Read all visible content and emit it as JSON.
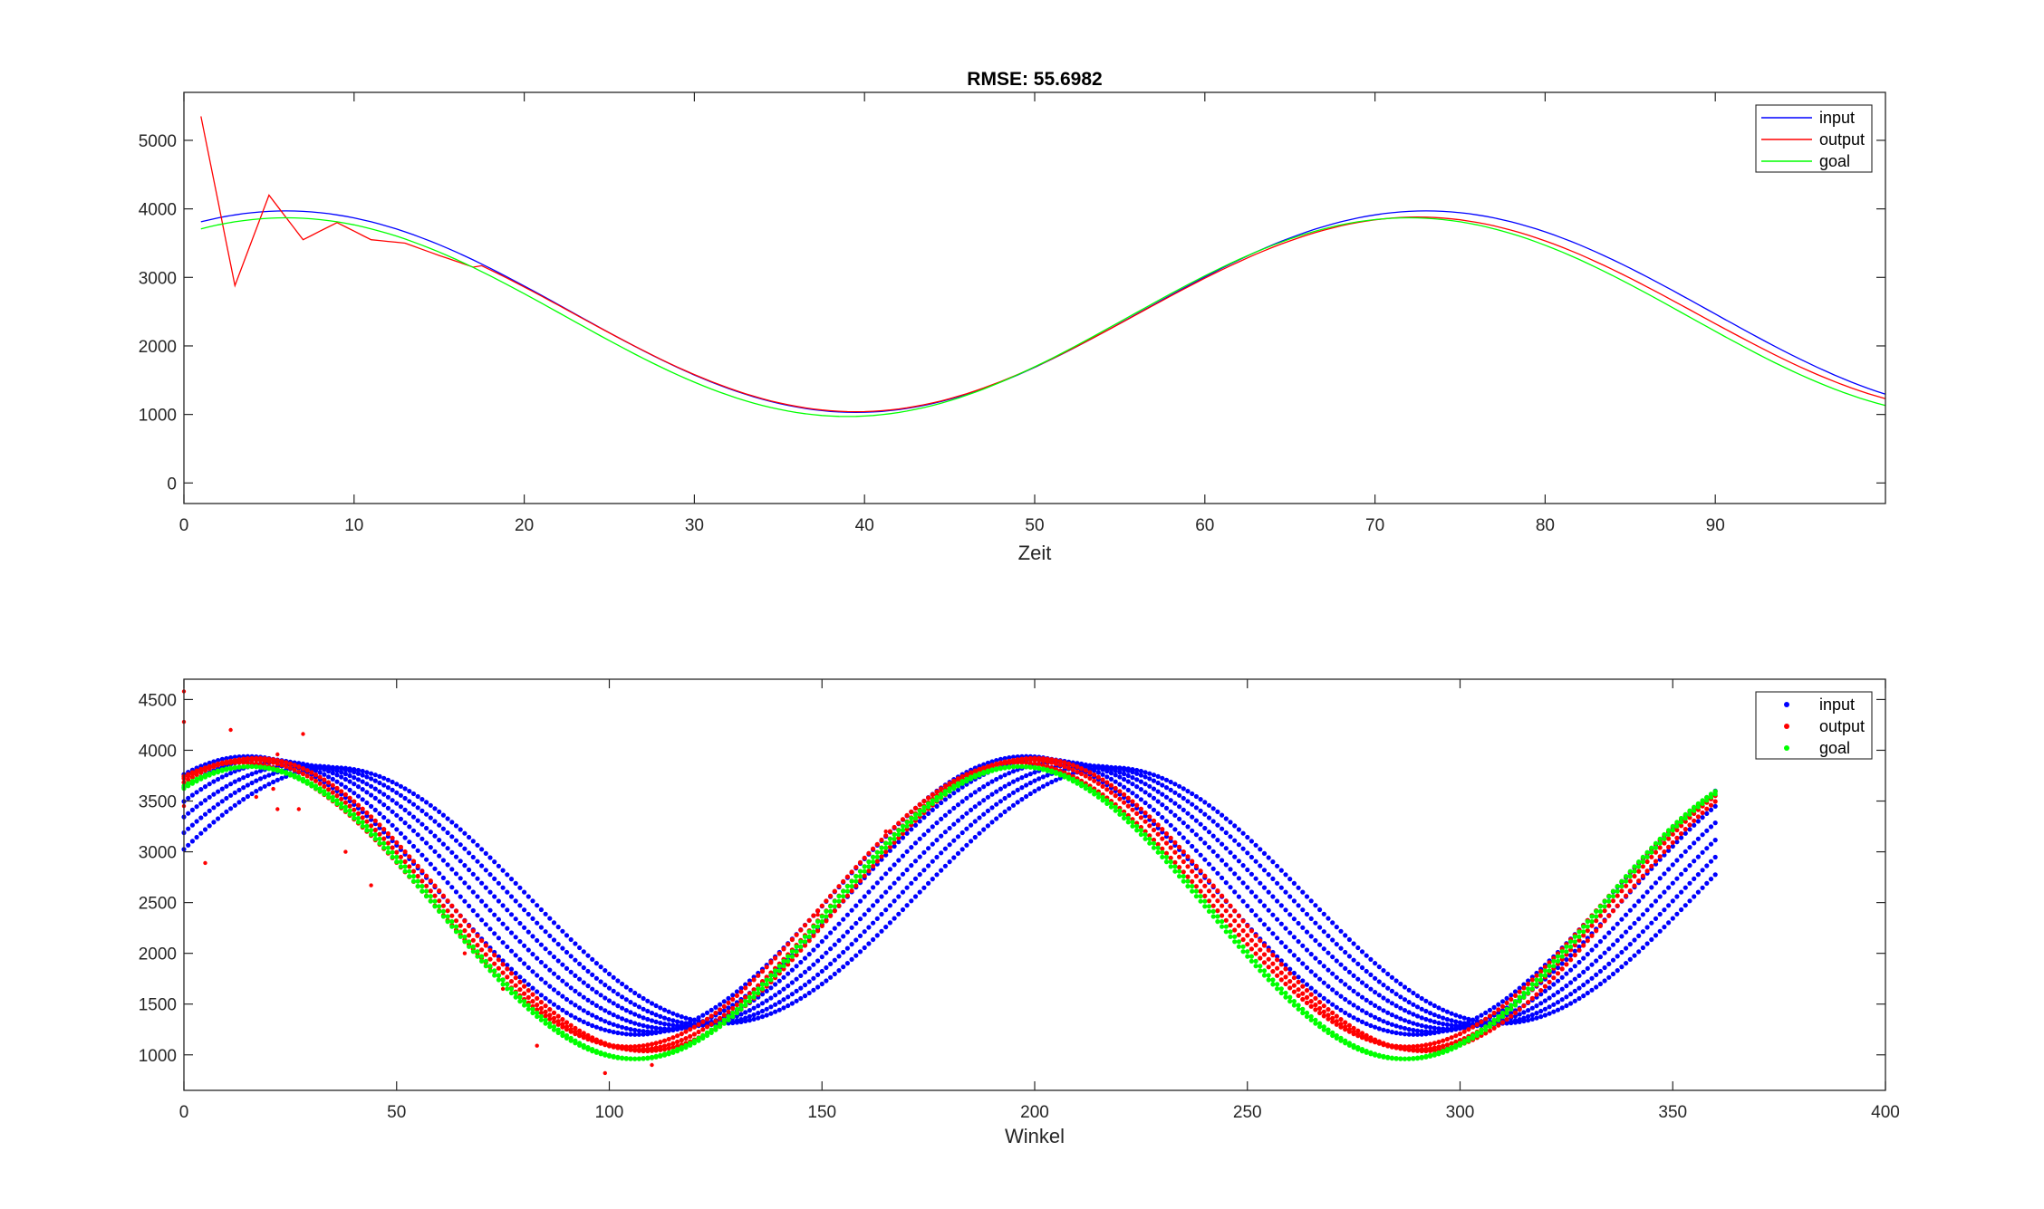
{
  "chart_data": [
    {
      "type": "line",
      "title": "RMSE: 55.6982",
      "xlabel": "Zeit",
      "ylabel": "",
      "xlim": [
        0,
        100
      ],
      "ylim": [
        -300,
        5700
      ],
      "xticks": [
        0,
        10,
        20,
        30,
        40,
        50,
        60,
        70,
        80,
        90
      ],
      "yticks": [
        0,
        1000,
        2000,
        3000,
        4000,
        5000
      ],
      "legend_position": "top-right",
      "grid": false,
      "x_range": [
        1,
        100
      ],
      "series": [
        {
          "name": "input",
          "color": "#0000ff",
          "model": {
            "amplitude": 1470,
            "offset": 2500,
            "center": 73,
            "period": 67
          }
        },
        {
          "name": "output",
          "color": "#ff0000",
          "model": {
            "amplitude": 1420,
            "offset": 2460,
            "center": 72.5,
            "period": 66
          },
          "x": [
            1,
            3,
            5,
            7,
            9,
            11,
            13,
            15,
            17
          ],
          "y": [
            5350,
            2880,
            4200,
            3550,
            3800,
            3550,
            3500,
            3320,
            3150
          ]
        },
        {
          "name": "goal",
          "color": "#00ff00",
          "model": {
            "amplitude": 1450,
            "offset": 2420,
            "center": 72,
            "period": 66
          }
        }
      ]
    },
    {
      "type": "scatter",
      "title": "",
      "xlabel": "Winkel",
      "ylabel": "",
      "xlim": [
        0,
        400
      ],
      "ylim": [
        650,
        4700
      ],
      "xticks": [
        0,
        50,
        100,
        150,
        200,
        250,
        300,
        350,
        400
      ],
      "yticks": [
        1000,
        1500,
        2000,
        2500,
        3000,
        3500,
        4000,
        4500
      ],
      "legend_position": "top-right",
      "grid": false,
      "x_range": [
        0,
        360
      ],
      "series": [
        {
          "name": "input",
          "color": "#0000ff",
          "model": {
            "amplitude": 1370,
            "offset": 2570,
            "center": 198,
            "period": 183
          },
          "band": [
            {
              "shift": 0,
              "scale": 1
            },
            {
              "shift": 4,
              "scale": 0.98
            },
            {
              "shift": 8,
              "scale": 0.96
            },
            {
              "shift": 12,
              "scale": 0.94
            },
            {
              "shift": 16,
              "scale": 0.93
            },
            {
              "shift": 20,
              "scale": 0.92
            }
          ]
        },
        {
          "name": "output",
          "color": "#ff0000",
          "model": {
            "amplitude": 1400,
            "offset": 2480,
            "center": 198,
            "period": 183
          },
          "band": [
            {
              "shift": -2,
              "scale": 1
            },
            {
              "shift": 0,
              "scale": 1.02
            },
            {
              "shift": 2,
              "scale": 1.03
            }
          ],
          "outliers_x": [
            0,
            0,
            0,
            5,
            11,
            17,
            21,
            22,
            22,
            27,
            28,
            38,
            44,
            66,
            75,
            83,
            99,
            110,
            138,
            149,
            165
          ],
          "outliers_y": [
            4580,
            4280,
            3450,
            2890,
            4200,
            3540,
            3620,
            3420,
            3960,
            3420,
            4160,
            3000,
            2670,
            2000,
            1650,
            1090,
            820,
            900,
            1920,
            2380,
            3200
          ]
        },
        {
          "name": "goal",
          "color": "#00ff00",
          "model": {
            "amplitude": 1440,
            "offset": 2400,
            "center": 196,
            "period": 181
          },
          "band": [
            {
              "shift": 0,
              "scale": 1
            },
            {
              "shift": 1,
              "scale": 1
            }
          ]
        }
      ]
    }
  ]
}
